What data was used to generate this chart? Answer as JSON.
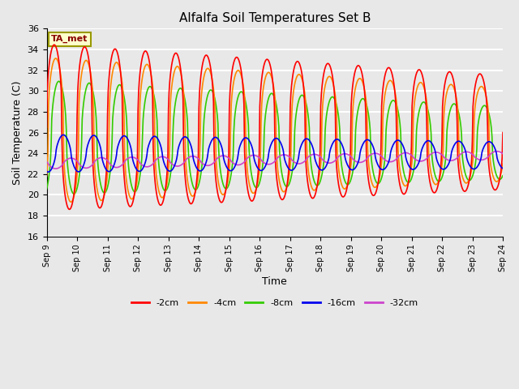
{
  "title": "Alfalfa Soil Temperatures Set B",
  "xlabel": "Time",
  "ylabel": "Soil Temperature (C)",
  "ylim": [
    16,
    36
  ],
  "xlim": [
    0,
    15
  ],
  "background_color": "#e8e8e8",
  "plot_bg_color": "#e8e8e8",
  "grid_color": "#ffffff",
  "series": {
    "neg2cm": {
      "label": "-2cm",
      "color": "#ff0000",
      "lw": 1.2
    },
    "neg4cm": {
      "label": "-4cm",
      "color": "#ff8800",
      "lw": 1.2
    },
    "neg8cm": {
      "label": "-8cm",
      "color": "#33cc00",
      "lw": 1.2
    },
    "neg16cm": {
      "label": "-16cm",
      "color": "#0000ee",
      "lw": 1.2
    },
    "neg32cm": {
      "label": "-32cm",
      "color": "#cc44cc",
      "lw": 1.2
    }
  },
  "xtick_labels": [
    "Sep 9",
    "Sep 10",
    "Sep 11",
    "Sep 12",
    "Sep 13",
    "Sep 14",
    "Sep 15",
    "Sep 16",
    "Sep 17",
    "Sep 18",
    "Sep 19",
    "Sep 20",
    "Sep 21",
    "Sep 22",
    "Sep 23",
    "Sep 24"
  ],
  "ytick_labels": [
    16,
    18,
    20,
    22,
    24,
    26,
    28,
    30,
    32,
    34,
    36
  ],
  "ta_met_label": "TA_met",
  "figsize": [
    6.4,
    4.8
  ],
  "dpi": 100
}
